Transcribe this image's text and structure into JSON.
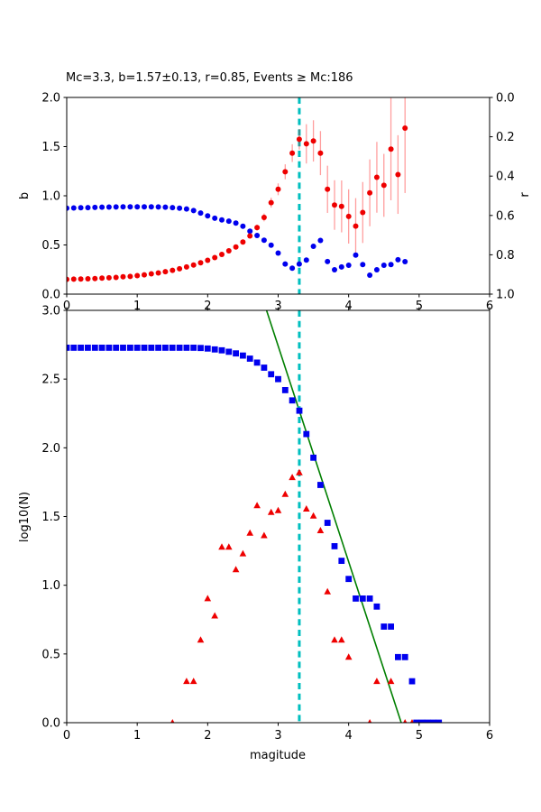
{
  "title": "Mc=3.3, b=1.57±0.13, r=0.85, Events ≥ Mc:186",
  "colors": {
    "b_series": "#0000ee",
    "r_series": "#ee0000",
    "error_bar": "rgba(255,0,0,0.38)",
    "mc_line": "#00bfbf",
    "fit_line": "#007f00",
    "axis": "#000000"
  },
  "chart_data": [
    {
      "id": "b-and-r-vs-magnitude",
      "type": "scatter",
      "x_range": [
        0,
        6
      ],
      "x_tick_values": [
        0,
        1,
        2,
        3,
        4,
        5,
        6
      ],
      "x_tick_labels": [
        "0",
        "1",
        "2",
        "3",
        "4",
        "5",
        "6"
      ],
      "left_axis": {
        "label": "b",
        "range": [
          0.0,
          2.0
        ],
        "tick_values": [
          0.0,
          0.5,
          1.0,
          1.5,
          2.0
        ],
        "tick_labels": [
          "0.0",
          "0.5",
          "1.0",
          "1.5",
          "2.0"
        ]
      },
      "right_axis": {
        "label": "r",
        "inverted": true,
        "range": [
          0.0,
          1.0
        ],
        "tick_values": [
          0.0,
          0.2,
          0.4,
          0.6,
          0.8,
          1.0
        ],
        "tick_labels": [
          "0.0",
          "0.2",
          "0.4",
          "0.6",
          "0.8",
          "1.0"
        ]
      },
      "mc_line": {
        "x": 3.3,
        "style": "dashed"
      },
      "series": [
        {
          "name": "b-value",
          "marker": "circle",
          "axis": "left",
          "x": [
            0.0,
            0.1,
            0.2,
            0.3,
            0.4,
            0.5,
            0.6,
            0.7,
            0.8,
            0.9,
            1.0,
            1.1,
            1.2,
            1.3,
            1.4,
            1.5,
            1.6,
            1.7,
            1.8,
            1.9,
            2.0,
            2.1,
            2.2,
            2.3,
            2.4,
            2.5,
            2.6,
            2.7,
            2.8,
            2.9,
            3.0,
            3.1,
            3.2,
            3.3,
            3.4,
            3.5,
            3.6,
            3.7,
            3.8,
            3.9,
            4.0,
            4.1,
            4.2,
            4.3,
            4.4,
            4.5,
            4.6,
            4.7,
            4.8
          ],
          "y": [
            0.874,
            0.876,
            0.878,
            0.88,
            0.882,
            0.884,
            0.885,
            0.886,
            0.887,
            0.888,
            0.888,
            0.888,
            0.887,
            0.886,
            0.884,
            0.88,
            0.874,
            0.866,
            0.85,
            0.825,
            0.795,
            0.772,
            0.755,
            0.742,
            0.722,
            0.69,
            0.64,
            0.596,
            0.548,
            0.497,
            0.417,
            0.306,
            0.264,
            0.306,
            0.347,
            0.486,
            0.546,
            0.331,
            0.248,
            0.276,
            0.294,
            0.397,
            0.3,
            0.193,
            0.248,
            0.294,
            0.3,
            0.35,
            0.33
          ]
        },
        {
          "name": "r-value",
          "marker": "circle",
          "axis": "right",
          "x": [
            0.0,
            0.1,
            0.2,
            0.3,
            0.4,
            0.5,
            0.6,
            0.7,
            0.8,
            0.9,
            1.0,
            1.1,
            1.2,
            1.3,
            1.4,
            1.5,
            1.6,
            1.7,
            1.8,
            1.9,
            2.0,
            2.1,
            2.2,
            2.3,
            2.4,
            2.5,
            2.6,
            2.7,
            2.8,
            2.9,
            3.0,
            3.1,
            3.2,
            3.3,
            3.4,
            3.5,
            3.6,
            3.7,
            3.8,
            3.9,
            4.0,
            4.1,
            4.2,
            4.3,
            4.4,
            4.5,
            4.6,
            4.7,
            4.8
          ],
          "y": [
            0.925,
            0.924,
            0.923,
            0.922,
            0.921,
            0.919,
            0.917,
            0.915,
            0.912,
            0.91,
            0.906,
            0.902,
            0.897,
            0.892,
            0.886,
            0.879,
            0.871,
            0.862,
            0.852,
            0.841,
            0.828,
            0.814,
            0.798,
            0.78,
            0.76,
            0.735,
            0.704,
            0.662,
            0.61,
            0.535,
            0.467,
            0.378,
            0.283,
            0.213,
            0.236,
            0.221,
            0.283,
            0.467,
            0.547,
            0.554,
            0.605,
            0.654,
            0.585,
            0.485,
            0.406,
            0.447,
            0.263,
            0.392,
            0.156
          ],
          "yerr": [
            0,
            0,
            0,
            0,
            0,
            0,
            0,
            0,
            0,
            0,
            0,
            0,
            0,
            0,
            0,
            0,
            0,
            0,
            0,
            0,
            0,
            0,
            0,
            0,
            0,
            0,
            0.012,
            0.015,
            0.02,
            0.025,
            0.03,
            0.038,
            0.045,
            0.052,
            0.1,
            0.105,
            0.112,
            0.12,
            0.126,
            0.132,
            0.138,
            0.142,
            0.155,
            0.17,
            0.18,
            0.16,
            0.26,
            0.2,
            0.33
          ]
        }
      ]
    },
    {
      "id": "frequency-magnitude-distribution",
      "type": "scatter",
      "xlabel": "magitude",
      "ylabel": "log10(N)",
      "x_range": [
        0,
        6
      ],
      "x_tick_values": [
        0,
        1,
        2,
        3,
        4,
        5,
        6
      ],
      "x_tick_labels": [
        "0",
        "1",
        "2",
        "3",
        "4",
        "5",
        "6"
      ],
      "y_range": [
        0.0,
        3.0
      ],
      "y_tick_values": [
        0.0,
        0.5,
        1.0,
        1.5,
        2.0,
        2.5,
        3.0
      ],
      "y_tick_labels": [
        "0.0",
        "0.5",
        "1.0",
        "1.5",
        "2.0",
        "2.5",
        "3.0"
      ],
      "mc_line": {
        "x": 3.3,
        "style": "dashed"
      },
      "series": [
        {
          "name": "cumulative-counts",
          "marker": "square",
          "x": [
            0.0,
            0.1,
            0.2,
            0.3,
            0.4,
            0.5,
            0.6,
            0.7,
            0.8,
            0.9,
            1.0,
            1.1,
            1.2,
            1.3,
            1.4,
            1.5,
            1.6,
            1.7,
            1.8,
            1.9,
            2.0,
            2.1,
            2.2,
            2.3,
            2.4,
            2.5,
            2.6,
            2.7,
            2.8,
            2.9,
            3.0,
            3.1,
            3.2,
            3.3,
            3.4,
            3.5,
            3.6,
            3.7,
            3.8,
            3.9,
            4.0,
            4.1,
            4.2,
            4.3,
            4.4,
            4.5,
            4.6,
            4.7,
            4.8,
            4.9,
            4.96,
            5.04,
            5.12,
            5.2,
            5.28
          ],
          "y": [
            2.728,
            2.728,
            2.728,
            2.728,
            2.728,
            2.728,
            2.728,
            2.728,
            2.728,
            2.728,
            2.728,
            2.728,
            2.728,
            2.728,
            2.728,
            2.728,
            2.728,
            2.728,
            2.728,
            2.726,
            2.722,
            2.716,
            2.709,
            2.699,
            2.687,
            2.671,
            2.649,
            2.62,
            2.583,
            2.535,
            2.5,
            2.42,
            2.345,
            2.27,
            2.1,
            1.928,
            1.73,
            1.454,
            1.284,
            1.178,
            1.046,
            0.903,
            0.903,
            0.903,
            0.845,
            0.699,
            0.699,
            0.477,
            0.477,
            0.301,
            0.0,
            0.0,
            0.0,
            0.0,
            0.0
          ]
        },
        {
          "name": "incremental-counts",
          "marker": "triangle",
          "x": [
            1.5,
            1.7,
            1.8,
            1.9,
            2.0,
            2.1,
            2.2,
            2.3,
            2.4,
            2.5,
            2.6,
            2.7,
            2.8,
            2.9,
            3.0,
            3.1,
            3.2,
            3.3,
            3.4,
            3.5,
            3.6,
            3.7,
            3.8,
            3.9,
            4.0,
            4.3,
            4.4,
            4.6,
            4.8,
            4.9
          ],
          "y": [
            0.0,
            0.301,
            0.301,
            0.602,
            0.903,
            0.778,
            1.279,
            1.279,
            1.114,
            1.23,
            1.38,
            1.58,
            1.362,
            1.531,
            1.544,
            1.663,
            1.785,
            1.82,
            1.556,
            1.505,
            1.398,
            0.954,
            0.602,
            0.602,
            0.477,
            0.0,
            0.301,
            0.301,
            0.0,
            0.0
          ]
        },
        {
          "name": "gutenberg-richter-fit",
          "marker": "line",
          "slope": -1.57,
          "points": [
            [
              2.835,
              3.0
            ],
            [
              4.746,
              0.0
            ]
          ]
        }
      ]
    }
  ]
}
